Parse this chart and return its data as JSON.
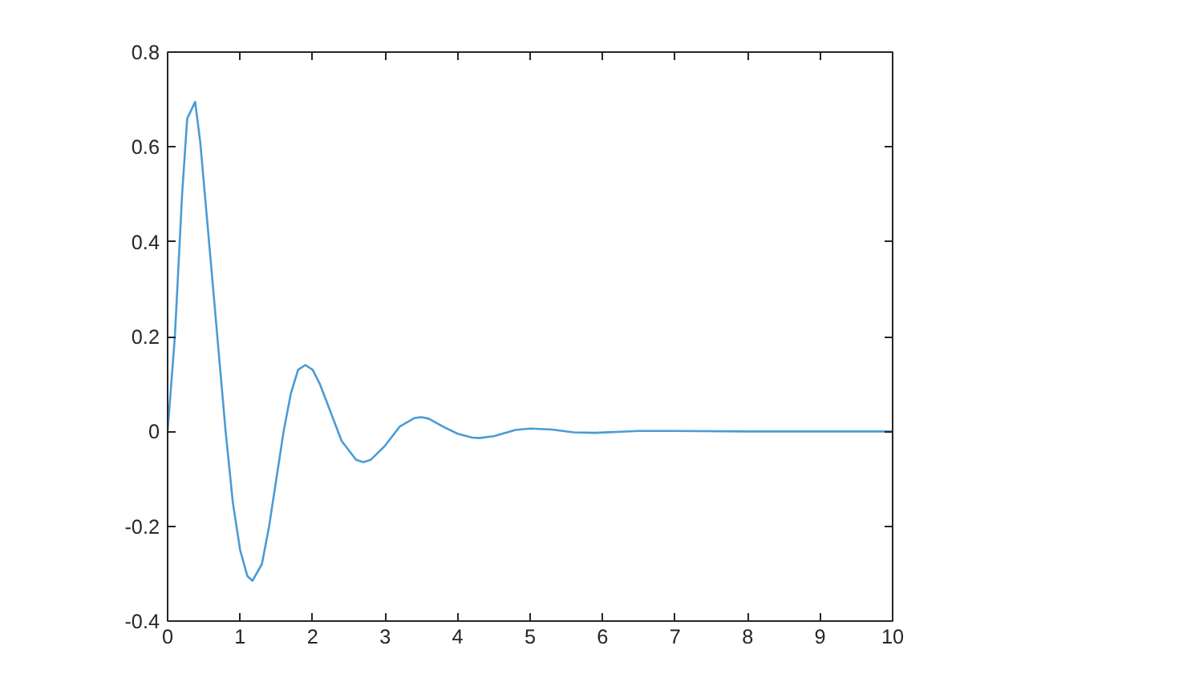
{
  "chart_data": {
    "type": "line",
    "x": [
      0,
      0.1,
      0.2,
      0.27,
      0.38,
      0.45,
      0.6,
      0.8,
      0.9,
      1.0,
      1.1,
      1.17,
      1.3,
      1.4,
      1.5,
      1.6,
      1.7,
      1.8,
      1.9,
      2.0,
      2.1,
      2.2,
      2.4,
      2.6,
      2.7,
      2.8,
      3.0,
      3.2,
      3.4,
      3.5,
      3.6,
      3.8,
      4.0,
      4.2,
      4.3,
      4.5,
      4.8,
      5.0,
      5.3,
      5.6,
      5.9,
      6.5,
      7.0,
      8.0,
      10.0
    ],
    "series": [
      {
        "color": "#4a9bd6",
        "values": [
          0,
          0.2,
          0.5,
          0.66,
          0.695,
          0.61,
          0.35,
          0.0,
          -0.15,
          -0.25,
          -0.305,
          -0.315,
          -0.28,
          -0.2,
          -0.1,
          0.0,
          0.08,
          0.13,
          0.14,
          0.13,
          0.1,
          0.06,
          -0.02,
          -0.06,
          -0.065,
          -0.06,
          -0.03,
          0.01,
          0.028,
          0.03,
          0.027,
          0.01,
          -0.005,
          -0.013,
          -0.014,
          -0.01,
          0.003,
          0.006,
          0.004,
          -0.002,
          -0.003,
          0.001,
          0.001,
          0,
          0
        ]
      }
    ],
    "xlim": [
      0,
      10
    ],
    "ylim": [
      -0.4,
      0.8
    ],
    "xticks": [
      0,
      1,
      2,
      3,
      4,
      5,
      6,
      7,
      8,
      9,
      10
    ],
    "yticks": [
      -0.4,
      -0.2,
      0,
      0.2,
      0.4,
      0.6,
      0.8
    ],
    "grid": false,
    "marker": "none",
    "line_style": "solid"
  }
}
